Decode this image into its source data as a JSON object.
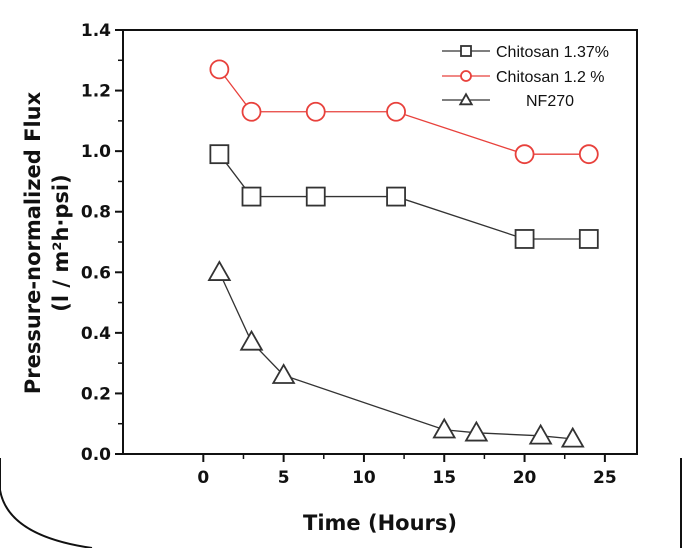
{
  "chart_data": {
    "type": "line",
    "xlabel": "Time (Hours)",
    "ylabel": "Pressure-normalized Flux",
    "ylabel_units": "(l / m²h·psi)",
    "xlim": [
      -5,
      27
    ],
    "ylim": [
      0.0,
      1.4
    ],
    "x_ticks": [
      0,
      5,
      10,
      15,
      20,
      25
    ],
    "y_ticks": [
      "0.0",
      "0.2",
      "0.4",
      "0.6",
      "0.8",
      "1.0",
      "1.2",
      "1.4"
    ],
    "grid": false,
    "legend_position": "top-right",
    "series": [
      {
        "name": "Chitosan 1.37%",
        "marker": "square",
        "color": "#333333",
        "x": [
          1,
          3,
          7,
          12,
          20,
          24
        ],
        "y": [
          0.99,
          0.85,
          0.85,
          0.85,
          0.71,
          0.71
        ]
      },
      {
        "name": "Chitosan 1.2 %",
        "marker": "circle",
        "color": "#e8413c",
        "x": [
          1,
          3,
          7,
          12,
          20,
          24
        ],
        "y": [
          1.27,
          1.13,
          1.13,
          1.13,
          0.99,
          0.99
        ]
      },
      {
        "name": "NF270",
        "marker": "triangle",
        "color": "#333333",
        "x": [
          1,
          3,
          5,
          15,
          17,
          21,
          23
        ],
        "y": [
          0.6,
          0.37,
          0.26,
          0.08,
          0.07,
          0.06,
          0.05
        ]
      }
    ]
  }
}
